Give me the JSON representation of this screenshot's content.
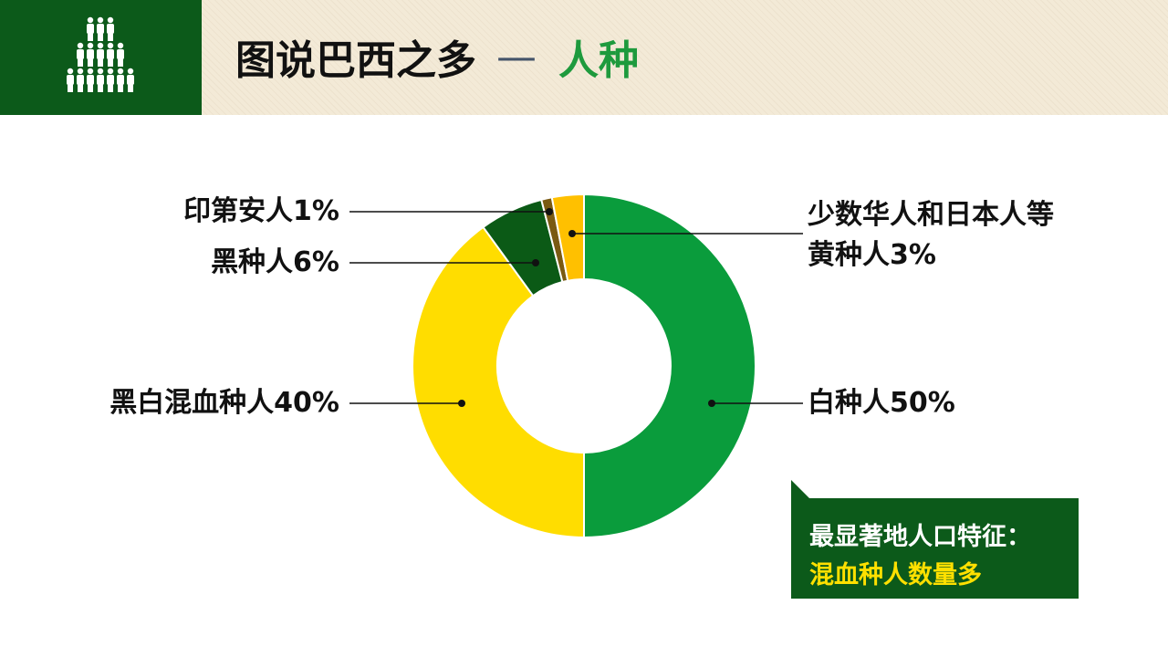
{
  "header": {
    "title_main": "图说巴西之多",
    "title_dash": "—",
    "title_accent": "人种",
    "icon": "people-crowd-icon"
  },
  "colors": {
    "header_bg": "#f3ead7",
    "dark_green": "#0c5a1a",
    "title_accent": "#1e9a3d",
    "note_highlight": "#ffe000"
  },
  "chart_data": {
    "type": "pie",
    "donut": true,
    "title": "",
    "slices": [
      {
        "label": "白种人50%",
        "value": 50,
        "color": "#0a9c3c"
      },
      {
        "label": "黑白混血种人40%",
        "value": 40,
        "color": "#ffdd00"
      },
      {
        "label": "黑种人6%",
        "value": 6,
        "color": "#0b5a16"
      },
      {
        "label": "印第安人1%",
        "value": 1,
        "color": "#7a5a12"
      },
      {
        "label": "少数华人和日本人等\n黄种人3%",
        "value": 3,
        "color": "#ffc000"
      }
    ]
  },
  "note": {
    "line1": "最显著地人口特征：",
    "line2": "混血种人数量多"
  }
}
